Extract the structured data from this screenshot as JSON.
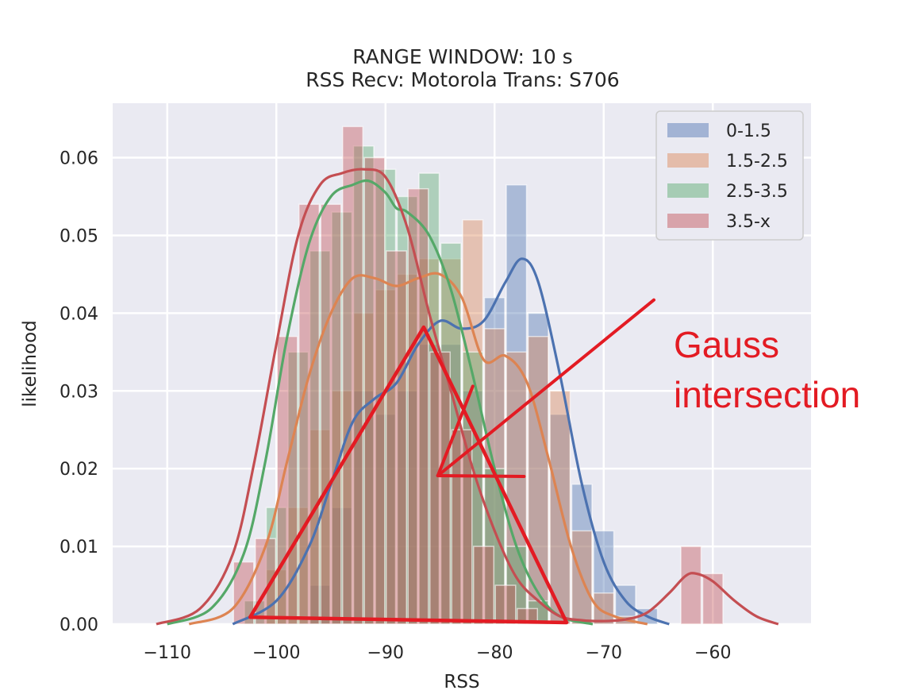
{
  "chart_data": {
    "type": "histogram-kde",
    "title": "RANGE WINDOW: 10 s",
    "subtitle": "RSS Recv: Motorola Trans: S706",
    "xlabel": "RSS",
    "ylabel": "likelihood",
    "xlim": [
      -115,
      -51
    ],
    "ylim": [
      0,
      0.067
    ],
    "xticks": [
      -110,
      -100,
      -90,
      -80,
      -70,
      -60
    ],
    "xtick_labels": [
      "−110",
      "−100",
      "−90",
      "−80",
      "−70",
      "−60"
    ],
    "yticks": [
      0.0,
      0.01,
      0.02,
      0.03,
      0.04,
      0.05,
      0.06
    ],
    "ytick_labels": [
      "0.00",
      "0.01",
      "0.02",
      "0.03",
      "0.04",
      "0.05",
      "0.06"
    ],
    "grid": true,
    "legend_position": "top-right",
    "bar_alpha": 0.4,
    "series": [
      {
        "name": "0-1.5",
        "color": "#4c72b0",
        "bins": [
          {
            "x0": -97,
            "x1": -95,
            "y": 0.005
          },
          {
            "x0": -95,
            "x1": -93,
            "y": 0.015
          },
          {
            "x0": -93,
            "x1": -91,
            "y": 0.03
          },
          {
            "x0": -91,
            "x1": -89,
            "y": 0.027
          },
          {
            "x0": -89,
            "x1": -87,
            "y": 0.03
          },
          {
            "x0": -87,
            "x1": -85,
            "y": 0.036
          },
          {
            "x0": -85,
            "x1": -83,
            "y": 0.036
          },
          {
            "x0": -83,
            "x1": -81,
            "y": 0.03
          },
          {
            "x0": -81,
            "x1": -79,
            "y": 0.042
          },
          {
            "x0": -79,
            "x1": -77,
            "y": 0.0565
          },
          {
            "x0": -77,
            "x1": -75,
            "y": 0.04
          },
          {
            "x0": -75,
            "x1": -73,
            "y": 0.027
          },
          {
            "x0": -73,
            "x1": -71,
            "y": 0.018
          },
          {
            "x0": -71,
            "x1": -69,
            "y": 0.012
          },
          {
            "x0": -69,
            "x1": -67,
            "y": 0.005
          },
          {
            "x0": -67,
            "x1": -65,
            "y": 0.002
          }
        ],
        "kde_x": [
          -104,
          -100,
          -97,
          -95,
          -93,
          -91,
          -89,
          -87,
          -85,
          -83,
          -81,
          -79,
          -77.5,
          -76,
          -74,
          -72,
          -70,
          -68,
          -66,
          -64
        ],
        "kde_y": [
          0.0,
          0.003,
          0.01,
          0.018,
          0.026,
          0.029,
          0.031,
          0.036,
          0.039,
          0.038,
          0.039,
          0.044,
          0.047,
          0.044,
          0.032,
          0.018,
          0.008,
          0.003,
          0.001,
          0.0
        ]
      },
      {
        "name": "1.5-2.5",
        "color": "#dd8452",
        "bins": [
          {
            "x0": -101,
            "x1": -99,
            "y": 0.007
          },
          {
            "x0": -99,
            "x1": -97,
            "y": 0.015
          },
          {
            "x0": -97,
            "x1": -95,
            "y": 0.025
          },
          {
            "x0": -95,
            "x1": -93,
            "y": 0.03
          },
          {
            "x0": -93,
            "x1": -91,
            "y": 0.04
          },
          {
            "x0": -91,
            "x1": -89,
            "y": 0.043
          },
          {
            "x0": -89,
            "x1": -87,
            "y": 0.045
          },
          {
            "x0": -87,
            "x1": -85,
            "y": 0.047
          },
          {
            "x0": -85,
            "x1": -83,
            "y": 0.047
          },
          {
            "x0": -83,
            "x1": -81,
            "y": 0.052
          },
          {
            "x0": -81,
            "x1": -79,
            "y": 0.038
          },
          {
            "x0": -79,
            "x1": -77,
            "y": 0.035
          },
          {
            "x0": -77,
            "x1": -75,
            "y": 0.037
          },
          {
            "x0": -75,
            "x1": -73,
            "y": 0.03
          },
          {
            "x0": -73,
            "x1": -71,
            "y": 0.012
          },
          {
            "x0": -71,
            "x1": -69,
            "y": 0.004
          },
          {
            "x0": -69,
            "x1": -67,
            "y": 0.001
          }
        ],
        "kde_x": [
          -108,
          -104,
          -101,
          -99,
          -97,
          -95,
          -93,
          -91,
          -89,
          -87,
          -85,
          -83,
          -81,
          -79,
          -77,
          -75,
          -73,
          -71,
          -69,
          -66
        ],
        "kde_y": [
          0.0,
          0.002,
          0.01,
          0.021,
          0.032,
          0.04,
          0.0445,
          0.0445,
          0.0435,
          0.0445,
          0.045,
          0.042,
          0.034,
          0.0345,
          0.031,
          0.021,
          0.01,
          0.003,
          0.001,
          0.0
        ]
      },
      {
        "name": "2.5-3.5",
        "color": "#55a868",
        "bins": [
          {
            "x0": -103,
            "x1": -101,
            "y": 0.003
          },
          {
            "x0": -101,
            "x1": -99,
            "y": 0.015
          },
          {
            "x0": -99,
            "x1": -97,
            "y": 0.035
          },
          {
            "x0": -97,
            "x1": -95,
            "y": 0.048
          },
          {
            "x0": -95,
            "x1": -93,
            "y": 0.053
          },
          {
            "x0": -93,
            "x1": -91,
            "y": 0.0615
          },
          {
            "x0": -91,
            "x1": -89,
            "y": 0.0585
          },
          {
            "x0": -89,
            "x1": -87,
            "y": 0.055
          },
          {
            "x0": -87,
            "x1": -85,
            "y": 0.058
          },
          {
            "x0": -85,
            "x1": -83,
            "y": 0.049
          },
          {
            "x0": -83,
            "x1": -81,
            "y": 0.035
          },
          {
            "x0": -81,
            "x1": -79,
            "y": 0.02
          },
          {
            "x0": -79,
            "x1": -77,
            "y": 0.01
          },
          {
            "x0": -77,
            "x1": -75,
            "y": 0.003
          }
        ],
        "kde_x": [
          -110,
          -106,
          -103,
          -101,
          -99,
          -97,
          -95,
          -93,
          -91.5,
          -90,
          -89,
          -88,
          -86,
          -84,
          -82,
          -80,
          -78,
          -76,
          -74,
          -71
        ],
        "kde_y": [
          0.0,
          0.002,
          0.009,
          0.021,
          0.037,
          0.049,
          0.055,
          0.0565,
          0.057,
          0.0555,
          0.0535,
          0.053,
          0.05,
          0.043,
          0.032,
          0.02,
          0.01,
          0.004,
          0.001,
          0.0
        ]
      },
      {
        "name": "3.5-x",
        "color": "#c44e52",
        "bins": [
          {
            "x0": -104,
            "x1": -102,
            "y": 0.008
          },
          {
            "x0": -102,
            "x1": -100,
            "y": 0.011
          },
          {
            "x0": -100,
            "x1": -98,
            "y": 0.037
          },
          {
            "x0": -98,
            "x1": -96,
            "y": 0.054
          },
          {
            "x0": -96,
            "x1": -94,
            "y": 0.054
          },
          {
            "x0": -94,
            "x1": -92,
            "y": 0.064
          },
          {
            "x0": -92,
            "x1": -90,
            "y": 0.06
          },
          {
            "x0": -90,
            "x1": -88,
            "y": 0.048
          },
          {
            "x0": -88,
            "x1": -86,
            "y": 0.056
          },
          {
            "x0": -86,
            "x1": -84,
            "y": 0.035
          },
          {
            "x0": -84,
            "x1": -82,
            "y": 0.025
          },
          {
            "x0": -82,
            "x1": -80,
            "y": 0.01
          },
          {
            "x0": -80,
            "x1": -78,
            "y": 0.005
          },
          {
            "x0": -78,
            "x1": -76,
            "y": 0.002
          },
          {
            "x0": -63,
            "x1": -61,
            "y": 0.01
          },
          {
            "x0": -61,
            "x1": -59,
            "y": 0.0065
          }
        ],
        "kde_x": [
          -111,
          -107,
          -104,
          -102,
          -100,
          -98,
          -96,
          -94,
          -92,
          -90,
          -88,
          -86,
          -84,
          -82,
          -80,
          -78,
          -76,
          -74,
          -72,
          -70,
          -68,
          -66,
          -64,
          -62.5,
          -61.5,
          -60,
          -58,
          -56,
          -54
        ],
        "kde_y": [
          0.0,
          0.002,
          0.009,
          0.021,
          0.036,
          0.05,
          0.0565,
          0.058,
          0.0585,
          0.0575,
          0.051,
          0.04,
          0.03,
          0.02,
          0.012,
          0.006,
          0.003,
          0.001,
          0.0005,
          0.0004,
          0.0006,
          0.0015,
          0.004,
          0.0062,
          0.0065,
          0.0055,
          0.003,
          0.001,
          0.0
        ]
      }
    ]
  },
  "annotation": {
    "text_lines": [
      "Gauss",
      "intersection"
    ],
    "color": "#e31b23",
    "big_triangle": [
      [
        -102.4,
        0.0009
      ],
      [
        -86.5,
        0.0382
      ],
      [
        -73.4,
        0.0002
      ]
    ],
    "arrow_line": [
      [
        -65.4,
        0.0417
      ],
      [
        -85.2,
        0.0191
      ]
    ],
    "arrow_head_upper": [
      [
        -85.2,
        0.0191
      ],
      [
        -82.0,
        0.0306
      ]
    ],
    "arrow_head_lower": [
      [
        -85.2,
        0.0191
      ],
      [
        -77.3,
        0.019
      ]
    ]
  }
}
